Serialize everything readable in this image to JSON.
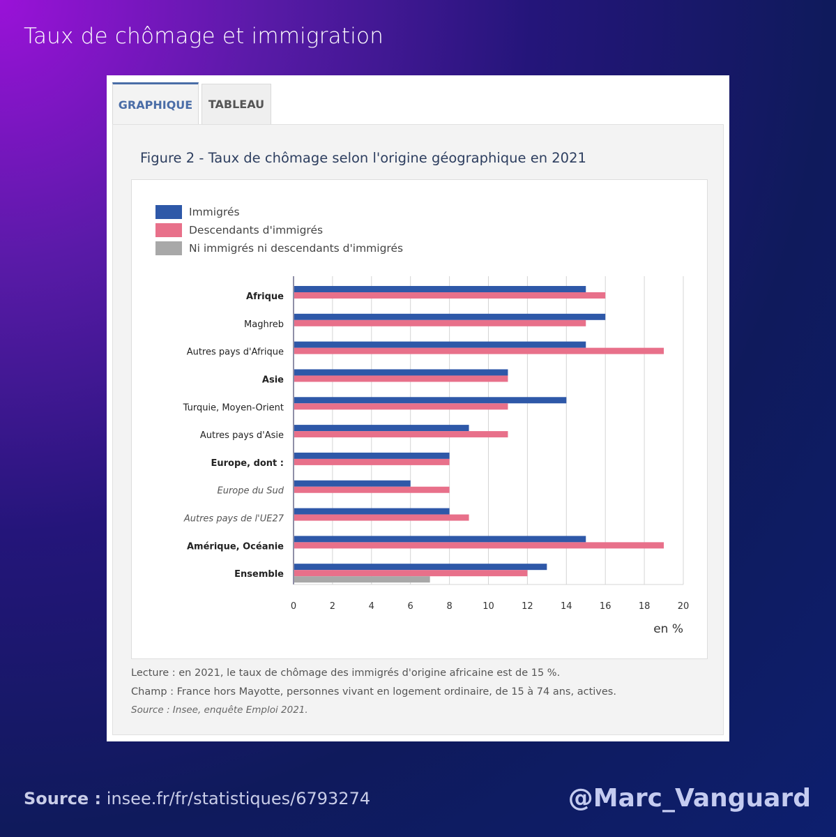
{
  "page": {
    "title": "Taux de chômage et immigration",
    "source_label": "Source :",
    "source_url": "insee.fr/fr/statistiques/6793274",
    "handle": "@Marc_Vanguard"
  },
  "tabs": [
    {
      "label": "GRAPHIQUE",
      "active": true
    },
    {
      "label": "TABLEAU",
      "active": false
    }
  ],
  "figure_title": "Figure 2 - Taux de chômage selon l'origine géographique en 2021",
  "notes": {
    "lecture": "Lecture : en 2021, le taux de chômage des immigrés d'origine africaine est de 15 %.",
    "champ": "Champ : France hors Mayotte, personnes vivant en logement ordinaire, de 15 à 74 ans, actives.",
    "source": "Source : Insee, enquête Emploi 2021."
  },
  "colors": {
    "immigres": "#2e58a8",
    "descendants": "#e8708a",
    "ni": "#a8a8a8"
  },
  "chart_data": {
    "type": "bar",
    "orientation": "horizontal",
    "title": "Figure 2 - Taux de chômage selon l'origine géographique en 2021",
    "xlabel": "en %",
    "xlim": [
      0,
      20
    ],
    "xticks": [
      0,
      2,
      4,
      6,
      8,
      10,
      12,
      14,
      16,
      18,
      20
    ],
    "grid": true,
    "legend_position": "top-left",
    "categories": [
      {
        "label": "Afrique",
        "style": "bold"
      },
      {
        "label": "Maghreb",
        "style": "normal"
      },
      {
        "label": "Autres pays d'Afrique",
        "style": "normal"
      },
      {
        "label": "Asie",
        "style": "bold"
      },
      {
        "label": "Turquie, Moyen-Orient",
        "style": "normal"
      },
      {
        "label": "Autres pays d'Asie",
        "style": "normal"
      },
      {
        "label": "Europe, dont :",
        "style": "bold"
      },
      {
        "label": "Europe du Sud",
        "style": "italic"
      },
      {
        "label": "Autres pays de l'UE27",
        "style": "italic"
      },
      {
        "label": "Amérique, Océanie",
        "style": "bold"
      },
      {
        "label": "Ensemble",
        "style": "bold"
      }
    ],
    "series": [
      {
        "name": "Immigrés",
        "key": "immigres",
        "values": [
          15,
          16,
          15,
          11,
          14,
          9,
          8,
          6,
          8,
          15,
          13
        ]
      },
      {
        "name": "Descendants d'immigrés",
        "key": "descendants",
        "values": [
          16,
          15,
          19,
          11,
          11,
          11,
          8,
          8,
          9,
          19,
          12
        ]
      },
      {
        "name": "Ni immigrés ni descendants d'immigrés",
        "key": "ni",
        "values": [
          null,
          null,
          null,
          null,
          null,
          null,
          null,
          null,
          null,
          null,
          7
        ]
      }
    ]
  }
}
